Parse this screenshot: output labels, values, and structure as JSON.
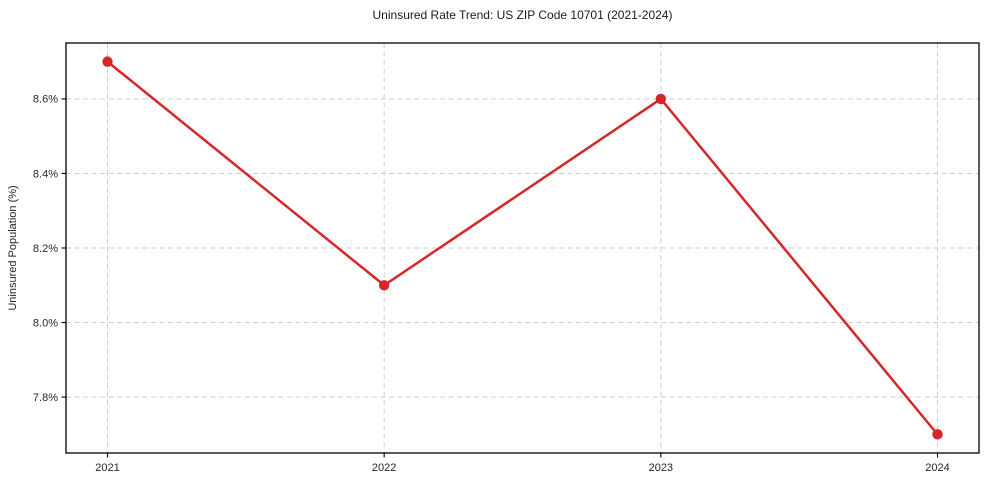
{
  "chart_data": {
    "type": "line",
    "title": "Uninsured Rate Trend: US ZIP Code 10701 (2021-2024)",
    "xlabel": "",
    "ylabel": "Uninsured Population (%)",
    "x": [
      2021,
      2022,
      2023,
      2024
    ],
    "values": [
      8.7,
      8.1,
      8.6,
      7.7
    ],
    "xtick_labels": [
      "2021",
      "2022",
      "2023",
      "2024"
    ],
    "yticks": [
      7.8,
      8.0,
      8.2,
      8.4,
      8.6
    ],
    "ytick_labels": [
      "7.8%",
      "8.0%",
      "8.2%",
      "8.4%",
      "8.6%"
    ],
    "xlim": [
      2020.85,
      2024.15
    ],
    "ylim": [
      7.65,
      8.75
    ],
    "grid": true,
    "grid_style": "dashed",
    "legend": "none",
    "line_color": "#d62728",
    "marker": "circle",
    "marker_color": "#d62728",
    "grid_color": "#cdcdcd",
    "axis_color": "#000000",
    "tick_label_color": "#262626"
  }
}
